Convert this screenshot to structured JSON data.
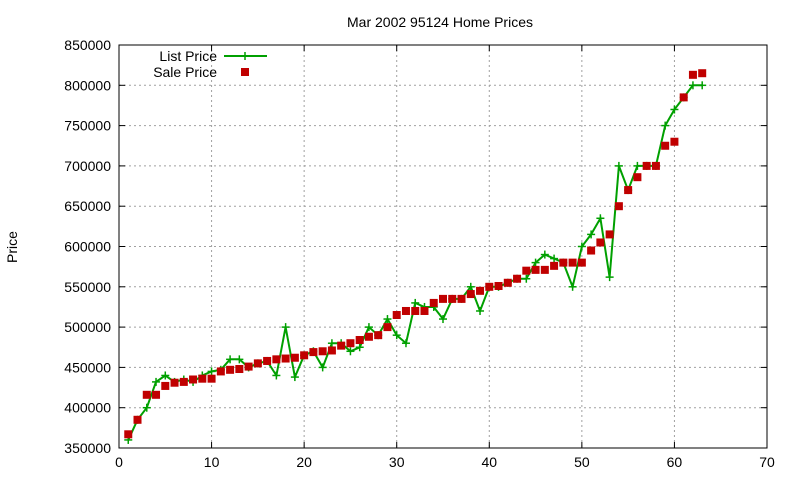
{
  "chart_data": {
    "type": "line",
    "title": "Mar 2002 95124 Home Prices",
    "xlabel": "",
    "ylabel": "Price",
    "xlim": [
      0,
      70
    ],
    "ylim": [
      350000,
      850000
    ],
    "xticks": [
      0,
      10,
      20,
      30,
      40,
      50,
      60,
      70
    ],
    "yticks": [
      350000,
      400000,
      450000,
      500000,
      550000,
      600000,
      650000,
      700000,
      750000,
      800000,
      850000
    ],
    "xtick_labels": [
      "0",
      "10",
      "20",
      "30",
      "40",
      "50",
      "60",
      "70"
    ],
    "ytick_labels": [
      "350000",
      "400000",
      "450000",
      "500000",
      "550000",
      "600000",
      "650000",
      "700000",
      "750000",
      "800000",
      "850000"
    ],
    "grid": true,
    "legend_position": "top-left",
    "series": [
      {
        "name": "List Price",
        "style": "lines+points",
        "marker": "plus",
        "color": "#00a000",
        "x": [
          1,
          2,
          3,
          4,
          5,
          6,
          7,
          8,
          9,
          10,
          11,
          12,
          13,
          14,
          15,
          16,
          17,
          18,
          19,
          20,
          21,
          22,
          23,
          24,
          25,
          26,
          27,
          28,
          29,
          30,
          31,
          32,
          33,
          34,
          35,
          36,
          37,
          38,
          39,
          40,
          41,
          42,
          43,
          44,
          45,
          46,
          47,
          48,
          49,
          50,
          51,
          52,
          53,
          54,
          55,
          56,
          57,
          58,
          59,
          60,
          61,
          62,
          63
        ],
        "y": [
          360000,
          385000,
          400000,
          432000,
          440000,
          432000,
          435000,
          432000,
          440000,
          445000,
          447000,
          460000,
          460000,
          450000,
          455000,
          458000,
          440000,
          500000,
          438000,
          465000,
          470000,
          450000,
          480000,
          480000,
          470000,
          475000,
          500000,
          490000,
          510000,
          490000,
          480000,
          530000,
          525000,
          525000,
          510000,
          535000,
          535000,
          550000,
          520000,
          550000,
          550000,
          555000,
          560000,
          560000,
          580000,
          590000,
          585000,
          580000,
          550000,
          600000,
          615000,
          635000,
          562000,
          700000,
          670000,
          700000,
          700000,
          700000,
          750000,
          770000,
          785000,
          800000,
          800000
        ]
      },
      {
        "name": "Sale Price",
        "style": "points",
        "marker": "square",
        "color": "#c00000",
        "x": [
          1,
          2,
          3,
          4,
          5,
          6,
          7,
          8,
          9,
          10,
          11,
          12,
          13,
          14,
          15,
          16,
          17,
          18,
          19,
          20,
          21,
          22,
          23,
          24,
          25,
          26,
          27,
          28,
          29,
          30,
          31,
          32,
          33,
          34,
          35,
          36,
          37,
          38,
          39,
          40,
          41,
          42,
          43,
          44,
          45,
          46,
          47,
          48,
          49,
          50,
          51,
          52,
          53,
          54,
          55,
          56,
          57,
          58,
          59,
          60,
          61,
          62,
          63
        ],
        "y": [
          367000,
          385000,
          416000,
          416000,
          427000,
          431000,
          432000,
          435000,
          436000,
          436000,
          445000,
          447000,
          448000,
          451000,
          455000,
          458000,
          460000,
          461000,
          462000,
          465000,
          469000,
          470000,
          471000,
          477000,
          480000,
          484000,
          488000,
          490000,
          500000,
          515000,
          520000,
          520000,
          520000,
          530000,
          535000,
          535000,
          535000,
          541000,
          545000,
          550000,
          551000,
          555000,
          560000,
          570000,
          571000,
          571000,
          576000,
          580000,
          580000,
          580000,
          595000,
          605000,
          615000,
          650000,
          670000,
          686000,
          700000,
          700000,
          725000,
          730000,
          785000,
          813000,
          815000
        ]
      }
    ]
  }
}
